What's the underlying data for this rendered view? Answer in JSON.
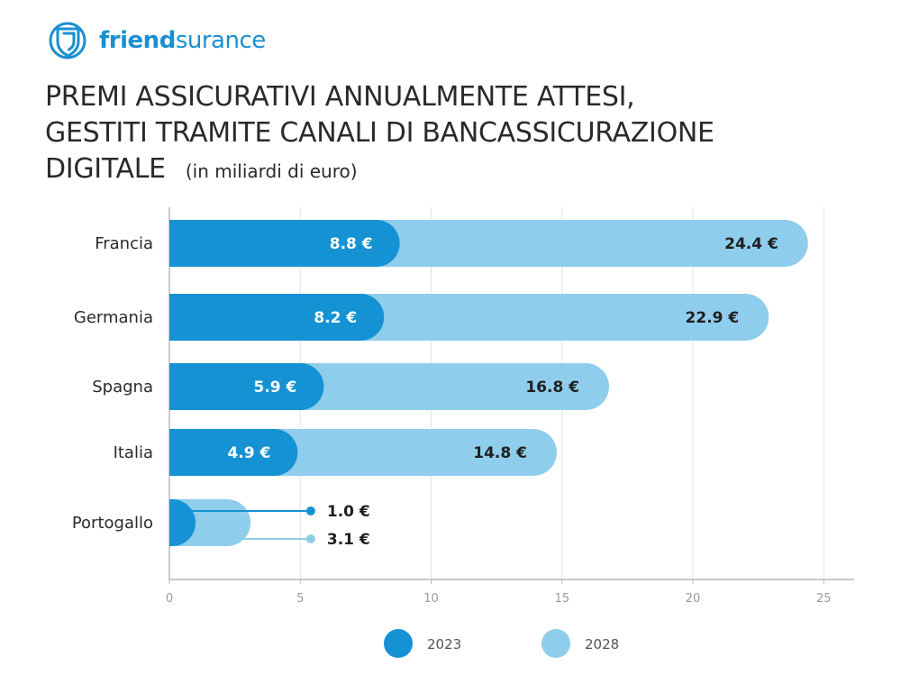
{
  "brand": {
    "name_bold": "friend",
    "name_light": "surance"
  },
  "header": {
    "title_line1": "PREMI ASSICURATIVI ANNUALMENTE ATTESI,",
    "title_line2": "GESTITI TRAMITE CANALI DI BANCASSICURAZIONE",
    "title_line3": "DIGITALE",
    "subtitle": "(in miliardi di euro)"
  },
  "colors": {
    "brand": "#1a8fd1",
    "series_2023": "#1592d3",
    "series_2028": "#8fcdec",
    "grid": "#e3e3e3",
    "axis": "#b8b8b8"
  },
  "chart_data": {
    "type": "bar",
    "orientation": "horizontal",
    "title": "PREMI ASSICURATIVI ANNUALMENTE ATTESI, GESTITI TRAMITE CANALI DI BANCASSICURAZIONE DIGITALE",
    "subtitle": "(in miliardi di euro)",
    "categories": [
      "Francia",
      "Germania",
      "Spagna",
      "Italia",
      "Portogallo"
    ],
    "series": [
      {
        "name": "2023",
        "values": [
          8.8,
          8.2,
          5.9,
          4.9,
          1.0
        ],
        "labels": [
          "8.8 €",
          "8.2 €",
          "5.9 €",
          "4.9 €",
          "1.0 €"
        ]
      },
      {
        "name": "2028",
        "values": [
          24.4,
          22.9,
          16.8,
          14.8,
          3.1
        ],
        "labels": [
          "24.4 €",
          "22.9 €",
          "16.8 €",
          "14.8 €",
          "3.1 €"
        ]
      }
    ],
    "xlim": [
      0,
      25
    ],
    "xticks": [
      0,
      5,
      10,
      15,
      20,
      25
    ],
    "xlabel": "",
    "ylabel": "",
    "grid": true,
    "legend": "bottom"
  }
}
